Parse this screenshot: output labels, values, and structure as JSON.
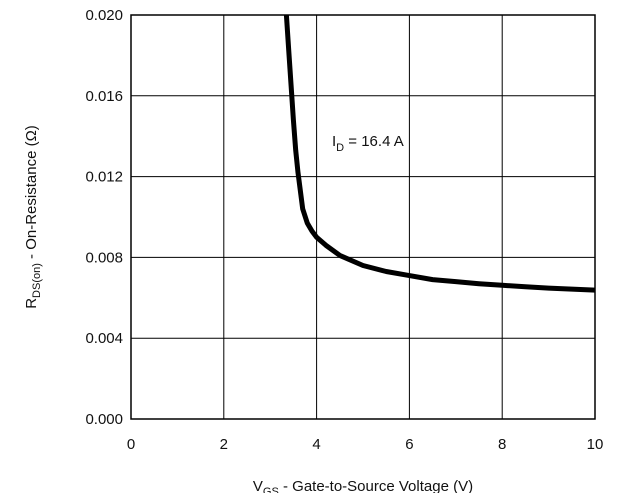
{
  "chart_data": {
    "type": "line",
    "xlabel": {
      "main": "V",
      "sub": "GS",
      "rest": " - Gate-to-Source Voltage (V)"
    },
    "ylabel": {
      "main": "R",
      "sub": "DS(on)",
      "rest": " - On-Resistance (Ω)"
    },
    "xlim": [
      0,
      10
    ],
    "ylim": [
      0.0,
      0.02
    ],
    "xticks": [
      "0",
      "2",
      "4",
      "6",
      "8",
      "10"
    ],
    "yticks": [
      "0.000",
      "0.004",
      "0.008",
      "0.012",
      "0.016",
      "0.020"
    ],
    "grid": true,
    "annotation": {
      "main": "I",
      "sub": "D",
      "rest": " = 16.4 A"
    },
    "series": [
      {
        "x": [
          3.35,
          3.4,
          3.45,
          3.5,
          3.55,
          3.6,
          3.7,
          3.8,
          3.9,
          4.0,
          4.2,
          4.5,
          5.0,
          5.5,
          6.0,
          6.5,
          7.0,
          7.5,
          8.0,
          8.5,
          9.0,
          9.5,
          10.0
        ],
        "y": [
          0.02,
          0.0182,
          0.0165,
          0.0148,
          0.0133,
          0.0122,
          0.0104,
          0.0097,
          0.0093,
          0.009,
          0.0086,
          0.0081,
          0.0076,
          0.0073,
          0.0071,
          0.0069,
          0.0068,
          0.0067,
          0.00662,
          0.00655,
          0.00648,
          0.00643,
          0.00638
        ],
        "color": "#000000"
      }
    ]
  }
}
